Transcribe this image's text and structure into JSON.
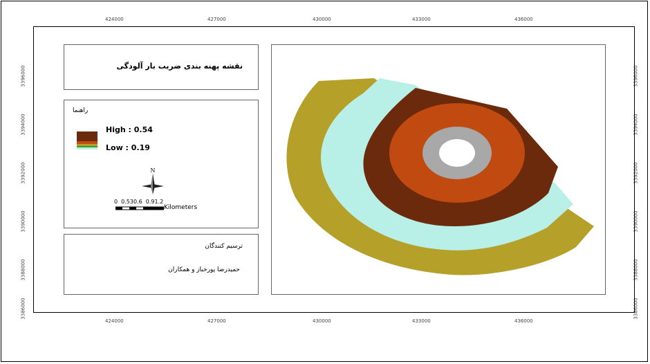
{
  "map_title": "نقشه پهنه بندی ضریب بار آلودگی",
  "legend": {
    "title": "راهنما",
    "high_label": "High : 0.54",
    "low_label": "Low : 0.19",
    "colors": [
      "#6b2a0c",
      "#c04a10",
      "#b5a02a",
      "#a8a8a8",
      "#b8f0e8"
    ]
  },
  "north_arrow": {
    "label": "N"
  },
  "scale_bar": {
    "ticks_text": "0  0.530.6  0.91.2",
    "unit": "Kilometers"
  },
  "credits": {
    "heading": "ترسیم کنندگان",
    "names": "حمیدرضا پورخباز و همکاران"
  },
  "grid": {
    "x_labels": [
      "424000",
      "427000",
      "430000",
      "433000",
      "436000"
    ],
    "y_labels": [
      "3396000",
      "3394000",
      "3392000",
      "3390000",
      "3388000",
      "3386000"
    ]
  },
  "zones": [
    {
      "name": "outer",
      "color": "#b5a02a"
    },
    {
      "name": "second",
      "color": "#b8f0e8"
    },
    {
      "name": "third",
      "color": "#6b2a0c"
    },
    {
      "name": "fourth",
      "color": "#c04a10"
    },
    {
      "name": "fifth",
      "color": "#a8a8a8"
    },
    {
      "name": "center",
      "color": "#ffffff"
    }
  ]
}
